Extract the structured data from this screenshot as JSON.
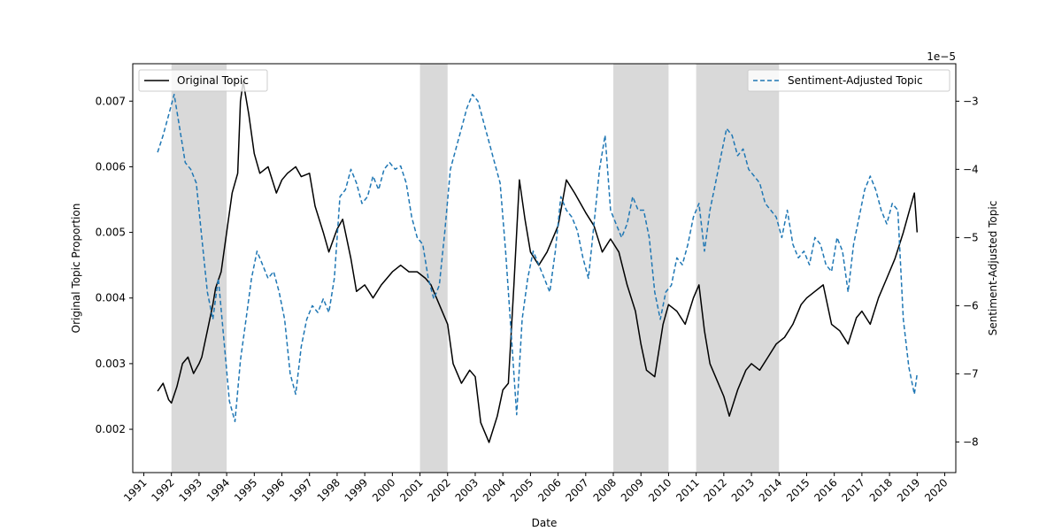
{
  "chart_data": {
    "type": "line",
    "xlabel": "Date",
    "ylabel_left": "Original Topic Proportion",
    "ylabel_right": "Sentiment-Adjusted Topic",
    "right_axis_multiplier": "1e−5",
    "xlim": [
      1990.6,
      2020.4
    ],
    "ylim_left": [
      0.00134,
      0.00757
    ],
    "ylim_right": [
      -8.45,
      -2.45
    ],
    "x_ticks": [
      1991,
      1992,
      1993,
      1994,
      1995,
      1996,
      1997,
      1998,
      1999,
      2000,
      2001,
      2002,
      2003,
      2004,
      2005,
      2006,
      2007,
      2008,
      2009,
      2010,
      2011,
      2012,
      2013,
      2014,
      2015,
      2016,
      2017,
      2018,
      2019,
      2020
    ],
    "x_tick_labels": [
      "1991",
      "1992",
      "1993",
      "1994",
      "1995",
      "1996",
      "1997",
      "1998",
      "1999",
      "2000",
      "2001",
      "2002",
      "2003",
      "2004",
      "2005",
      "2006",
      "2007",
      "2008",
      "2009",
      "2010",
      "2011",
      "2012",
      "2013",
      "2014",
      "2015",
      "2016",
      "2017",
      "2018",
      "2019",
      "2020"
    ],
    "y_left_ticks": [
      0.002,
      0.003,
      0.004,
      0.005,
      0.006,
      0.007
    ],
    "y_left_tick_labels": [
      "0.002",
      "0.003",
      "0.004",
      "0.005",
      "0.006",
      "0.007"
    ],
    "y_right_ticks": [
      -8,
      -7,
      -6,
      -5,
      -4,
      -3
    ],
    "y_right_tick_labels": [
      "−8",
      "−7",
      "−6",
      "−5",
      "−4",
      "−3"
    ],
    "shaded_periods": [
      [
        1992,
        1994
      ],
      [
        2001,
        2002
      ],
      [
        2008,
        2010
      ],
      [
        2011,
        2014
      ]
    ],
    "grid": false,
    "series": [
      {
        "name": "Original Topic",
        "axis": "left",
        "color": "#000000",
        "style": "solid",
        "legend_position": "upper-left",
        "x": [
          1991.5,
          1991.7,
          1991.9,
          1992.0,
          1992.2,
          1992.4,
          1992.6,
          1992.8,
          1993.0,
          1993.1,
          1993.3,
          1993.5,
          1993.6,
          1993.8,
          1994.0,
          1994.2,
          1994.4,
          1994.5,
          1994.6,
          1994.8,
          1995.0,
          1995.2,
          1995.5,
          1995.8,
          1996.0,
          1996.2,
          1996.5,
          1996.7,
          1997.0,
          1997.2,
          1997.5,
          1997.7,
          1998.0,
          1998.2,
          1998.5,
          1998.7,
          1999.0,
          1999.3,
          1999.6,
          2000.0,
          2000.3,
          2000.6,
          2000.9,
          2001.2,
          2001.4,
          2001.7,
          2002.0,
          2002.2,
          2002.5,
          2002.8,
          2003.0,
          2003.2,
          2003.5,
          2003.8,
          2004.0,
          2004.2,
          2004.4,
          2004.6,
          2004.8,
          2005.0,
          2005.3,
          2005.6,
          2006.0,
          2006.3,
          2006.6,
          2007.0,
          2007.3,
          2007.6,
          2007.9,
          2008.2,
          2008.5,
          2008.8,
          2009.0,
          2009.2,
          2009.5,
          2009.8,
          2010.0,
          2010.3,
          2010.6,
          2010.9,
          2011.1,
          2011.3,
          2011.5,
          2011.8,
          2012.0,
          2012.2,
          2012.5,
          2012.8,
          2013.0,
          2013.3,
          2013.6,
          2013.9,
          2014.2,
          2014.5,
          2014.8,
          2015.0,
          2015.3,
          2015.6,
          2015.9,
          2016.2,
          2016.5,
          2016.8,
          2017.0,
          2017.3,
          2017.6,
          2017.9,
          2018.2,
          2018.5,
          2018.7,
          2018.9,
          2019.0
        ],
        "values": [
          0.00258,
          0.0027,
          0.00245,
          0.0024,
          0.00265,
          0.003,
          0.0031,
          0.00285,
          0.003,
          0.0031,
          0.0035,
          0.0039,
          0.00415,
          0.0044,
          0.005,
          0.0056,
          0.0059,
          0.007,
          0.0073,
          0.0068,
          0.0062,
          0.0059,
          0.006,
          0.0056,
          0.0058,
          0.0059,
          0.006,
          0.00585,
          0.0059,
          0.0054,
          0.005,
          0.0047,
          0.00505,
          0.0052,
          0.0046,
          0.0041,
          0.0042,
          0.004,
          0.0042,
          0.0044,
          0.0045,
          0.0044,
          0.0044,
          0.0043,
          0.0042,
          0.0039,
          0.0036,
          0.003,
          0.0027,
          0.0029,
          0.0028,
          0.0021,
          0.0018,
          0.0022,
          0.0026,
          0.0027,
          0.0042,
          0.0058,
          0.0052,
          0.0047,
          0.0045,
          0.0047,
          0.0051,
          0.0058,
          0.0056,
          0.0053,
          0.0051,
          0.0047,
          0.0049,
          0.0047,
          0.0042,
          0.0038,
          0.0033,
          0.0029,
          0.0028,
          0.0036,
          0.0039,
          0.0038,
          0.0036,
          0.004,
          0.0042,
          0.0035,
          0.003,
          0.0027,
          0.0025,
          0.0022,
          0.0026,
          0.0029,
          0.003,
          0.0029,
          0.0031,
          0.0033,
          0.0034,
          0.0036,
          0.0039,
          0.004,
          0.0041,
          0.0042,
          0.0036,
          0.0035,
          0.0033,
          0.0037,
          0.0038,
          0.0036,
          0.004,
          0.0043,
          0.0046,
          0.005,
          0.0053,
          0.0056,
          0.005
        ],
        "y_note": "values"
      },
      {
        "name": "Sentiment-Adjusted Topic",
        "axis": "right",
        "color": "#1f77b4",
        "style": "dashed",
        "legend_position": "upper-right",
        "x": [
          1991.5,
          1991.7,
          1991.9,
          1992.1,
          1992.3,
          1992.5,
          1992.7,
          1992.9,
          1993.1,
          1993.3,
          1993.5,
          1993.7,
          1993.9,
          1994.1,
          1994.3,
          1994.5,
          1994.7,
          1994.9,
          1995.1,
          1995.3,
          1995.5,
          1995.7,
          1995.9,
          1996.1,
          1996.3,
          1996.5,
          1996.7,
          1996.9,
          1997.1,
          1997.3,
          1997.5,
          1997.7,
          1997.9,
          1998.1,
          1998.3,
          1998.5,
          1998.7,
          1998.9,
          1999.1,
          1999.3,
          1999.5,
          1999.7,
          1999.9,
          2000.1,
          2000.3,
          2000.5,
          2000.7,
          2000.9,
          2001.1,
          2001.3,
          2001.5,
          2001.7,
          2001.9,
          2002.1,
          2002.3,
          2002.5,
          2002.7,
          2002.9,
          2003.1,
          2003.3,
          2003.5,
          2003.7,
          2003.9,
          2004.1,
          2004.3,
          2004.5,
          2004.7,
          2004.9,
          2005.1,
          2005.3,
          2005.5,
          2005.7,
          2005.9,
          2006.1,
          2006.3,
          2006.5,
          2006.7,
          2006.9,
          2007.1,
          2007.3,
          2007.5,
          2007.7,
          2007.9,
          2008.1,
          2008.3,
          2008.5,
          2008.7,
          2008.9,
          2009.1,
          2009.3,
          2009.5,
          2009.7,
          2009.9,
          2010.1,
          2010.3,
          2010.5,
          2010.7,
          2010.9,
          2011.1,
          2011.3,
          2011.5,
          2011.7,
          2011.9,
          2012.1,
          2012.3,
          2012.5,
          2012.7,
          2012.9,
          2013.1,
          2013.3,
          2013.5,
          2013.7,
          2013.9,
          2014.1,
          2014.3,
          2014.5,
          2014.7,
          2014.9,
          2015.1,
          2015.3,
          2015.5,
          2015.7,
          2015.9,
          2016.1,
          2016.3,
          2016.5,
          2016.7,
          2016.9,
          2017.1,
          2017.3,
          2017.5,
          2017.7,
          2017.9,
          2018.1,
          2018.3,
          2018.5,
          2018.7,
          2018.9,
          2019.0
        ],
        "values": [
          -3.75,
          -3.5,
          -3.2,
          -2.9,
          -3.4,
          -3.9,
          -4.0,
          -4.2,
          -5.0,
          -5.8,
          -6.2,
          -5.6,
          -6.5,
          -7.4,
          -7.7,
          -6.8,
          -6.2,
          -5.6,
          -5.2,
          -5.4,
          -5.6,
          -5.5,
          -5.8,
          -6.2,
          -7.0,
          -7.3,
          -6.6,
          -6.2,
          -6.0,
          -6.1,
          -5.9,
          -6.1,
          -5.6,
          -4.4,
          -4.3,
          -4.0,
          -4.2,
          -4.5,
          -4.4,
          -4.1,
          -4.3,
          -4.0,
          -3.9,
          -4.0,
          -3.95,
          -4.2,
          -4.7,
          -5.0,
          -5.1,
          -5.6,
          -5.9,
          -5.7,
          -4.9,
          -4.0,
          -3.7,
          -3.4,
          -3.1,
          -2.9,
          -3.0,
          -3.3,
          -3.6,
          -3.9,
          -4.2,
          -5.2,
          -6.4,
          -7.6,
          -6.2,
          -5.6,
          -5.2,
          -5.4,
          -5.6,
          -5.8,
          -5.2,
          -4.4,
          -4.6,
          -4.7,
          -4.9,
          -5.3,
          -5.6,
          -4.8,
          -4.0,
          -3.5,
          -4.6,
          -4.8,
          -5.0,
          -4.8,
          -4.4,
          -4.6,
          -4.6,
          -5.0,
          -5.8,
          -6.2,
          -5.8,
          -5.7,
          -5.3,
          -5.4,
          -5.1,
          -4.7,
          -4.5,
          -5.2,
          -4.6,
          -4.2,
          -3.8,
          -3.4,
          -3.5,
          -3.8,
          -3.7,
          -4.0,
          -4.1,
          -4.2,
          -4.5,
          -4.6,
          -4.7,
          -5.0,
          -4.6,
          -5.1,
          -5.3,
          -5.2,
          -5.4,
          -5.0,
          -5.1,
          -5.4,
          -5.5,
          -5.0,
          -5.2,
          -5.8,
          -5.1,
          -4.7,
          -4.3,
          -4.1,
          -4.3,
          -4.6,
          -4.8,
          -4.5,
          -4.6,
          -6.2,
          -6.9,
          -7.3,
          -7.0
        ],
        "y_note": "values"
      }
    ]
  }
}
